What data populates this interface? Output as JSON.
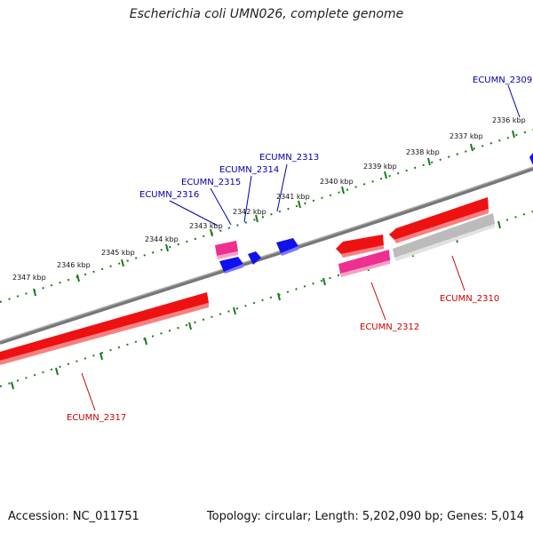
{
  "title": "Escherichia coli UMN026, complete genome",
  "footer": {
    "accession": "Accession: NC_011751",
    "info": "Topology: circular; Length: 5,202,090 bp; Genes: 5,014"
  },
  "colors": {
    "forward_label": "#0000aa",
    "reverse_label": "#cc0000",
    "tick": "#1a7a1a",
    "backbone": "#808080",
    "gene_red": "#ee1111",
    "gene_pink": "#ee2f8f",
    "gene_blue": "#1111ee",
    "gene_grey": "#bbbbbb"
  },
  "kbp_ticks": [
    "2336 kbp",
    "2337 kbp",
    "2338 kbp",
    "2339 kbp",
    "2340 kbp",
    "2341 kbp",
    "2342 kbp",
    "2343 kbp",
    "2344 kbp",
    "2345 kbp",
    "2346 kbp",
    "2347 kbp"
  ],
  "gene_labels": {
    "forward": [
      "ECUMN_2309",
      "ECUMN_2313",
      "ECUMN_2314",
      "ECUMN_2315",
      "ECUMN_2316"
    ],
    "reverse": [
      "ECUMN_2310",
      "ECUMN_2312",
      "ECUMN_2317"
    ]
  }
}
